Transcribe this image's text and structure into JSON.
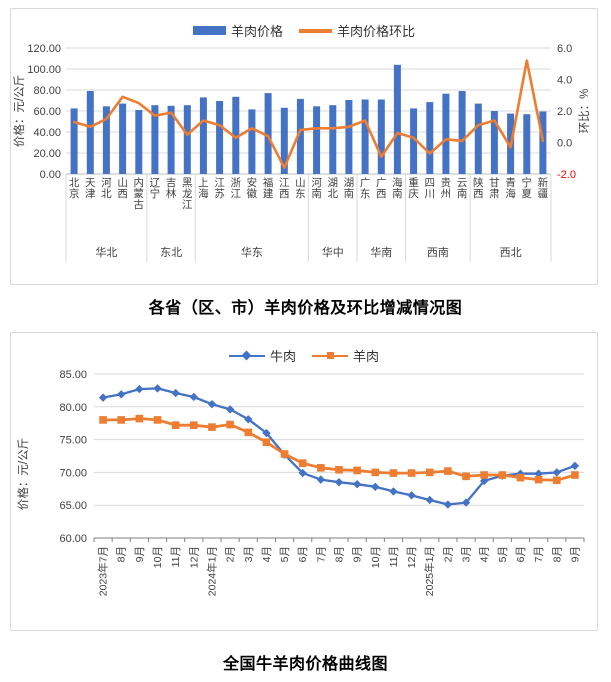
{
  "colors": {
    "bar_blue": "#4472C4",
    "line_orange": "#ED7D31",
    "grid": "#D9D9D9",
    "axis_text": "#404040",
    "negative_tick_red": "#FF0000"
  },
  "chart_data": [
    {
      "type": "bar",
      "subtype": "bar-with-secondary-line",
      "title": "各省（区、市）羊肉价格及环比增减情况图",
      "categories": [
        "北京",
        "天津",
        "河北",
        "山西",
        "内蒙古",
        "辽宁",
        "吉林",
        "黑龙江",
        "上海",
        "江苏",
        "浙江",
        "安徽",
        "福建",
        "江西",
        "山东",
        "河南",
        "湖北",
        "湖南",
        "广东",
        "广西",
        "海南",
        "重庆",
        "四川",
        "贵州",
        "云南",
        "陕西",
        "甘肃",
        "青海",
        "宁夏",
        "新疆"
      ],
      "category_groups": [
        {
          "label": "华北",
          "count": 5
        },
        {
          "label": "东北",
          "count": 3
        },
        {
          "label": "华东",
          "count": 7
        },
        {
          "label": "华中",
          "count": 3
        },
        {
          "label": "华南",
          "count": 3
        },
        {
          "label": "西南",
          "count": 4
        },
        {
          "label": "西北",
          "count": 5
        }
      ],
      "series": [
        {
          "name": "羊肉价格",
          "type": "bar",
          "axis": "left",
          "color": "#4472C4",
          "values": [
            62.5,
            79,
            64.5,
            67,
            61,
            65.5,
            65,
            65.5,
            73,
            69.5,
            73.5,
            61.5,
            77,
            63,
            71.5,
            64.5,
            65.5,
            70.5,
            71,
            71,
            104,
            62.5,
            68.5,
            76.5,
            79,
            67,
            60,
            57.5,
            57,
            59.5
          ]
        },
        {
          "name": "羊肉价格环比",
          "type": "line",
          "axis": "right",
          "color": "#ED7D31",
          "values": [
            1.3,
            1.0,
            1.5,
            2.9,
            2.5,
            1.7,
            1.9,
            0.5,
            1.4,
            1.1,
            0.3,
            0.9,
            0.4,
            -1.6,
            0.8,
            0.9,
            0.9,
            1.0,
            1.4,
            -0.9,
            0.6,
            0.3,
            -0.7,
            0.2,
            0.1,
            1.1,
            1.4,
            -0.3,
            5.2,
            0.1
          ]
        }
      ],
      "left_axis": {
        "label": "价格：元/公斤",
        "min": 0,
        "max": 120,
        "step": 20,
        "ticks": [
          "120.00",
          "100.00",
          "80.00",
          "60.00",
          "40.00",
          "20.00",
          "0.00"
        ]
      },
      "right_axis": {
        "label": "环比：%",
        "min": -2,
        "max": 6,
        "step": 2,
        "ticks": [
          "6.0",
          "4.0",
          "2.0",
          "0.0",
          "-2.0"
        ]
      },
      "grid": true,
      "legend_position": "top"
    },
    {
      "type": "line",
      "title": "全国牛羊肉价格曲线图",
      "x": [
        "2023年7月",
        "8月",
        "9月",
        "10月",
        "11月",
        "12月",
        "2024年1月",
        "2月",
        "3月",
        "4月",
        "5月",
        "6月",
        "7月",
        "8月",
        "9月",
        "10月",
        "11月",
        "12月",
        "2025年1月",
        "2月",
        "3月",
        "4月",
        "5月",
        "6月",
        "7月",
        "8月",
        "9月"
      ],
      "series": [
        {
          "name": "牛肉",
          "color": "#4472C4",
          "marker": "diamond",
          "values": [
            81.4,
            81.9,
            82.7,
            82.8,
            82.1,
            81.5,
            80.4,
            79.6,
            78.1,
            76.0,
            72.7,
            69.9,
            68.9,
            68.5,
            68.2,
            67.8,
            67.1,
            66.5,
            65.8,
            65.1,
            65.4,
            68.7,
            69.5,
            69.8,
            69.8,
            70.0,
            71.0
          ]
        },
        {
          "name": "羊肉",
          "color": "#ED7D31",
          "marker": "square",
          "values": [
            78.0,
            78.0,
            78.2,
            78.0,
            77.2,
            77.2,
            76.9,
            77.3,
            76.1,
            74.6,
            72.8,
            71.4,
            70.7,
            70.4,
            70.3,
            70.0,
            69.9,
            69.9,
            70.0,
            70.2,
            69.4,
            69.6,
            69.6,
            69.2,
            68.9,
            68.8,
            69.6
          ]
        }
      ],
      "y_axis": {
        "label": "价格：元/公斤",
        "min": 60,
        "max": 85,
        "step": 5,
        "ticks": [
          "85.00",
          "80.00",
          "75.00",
          "70.00",
          "65.00",
          "60.00"
        ]
      },
      "grid": true,
      "legend_position": "top"
    }
  ]
}
